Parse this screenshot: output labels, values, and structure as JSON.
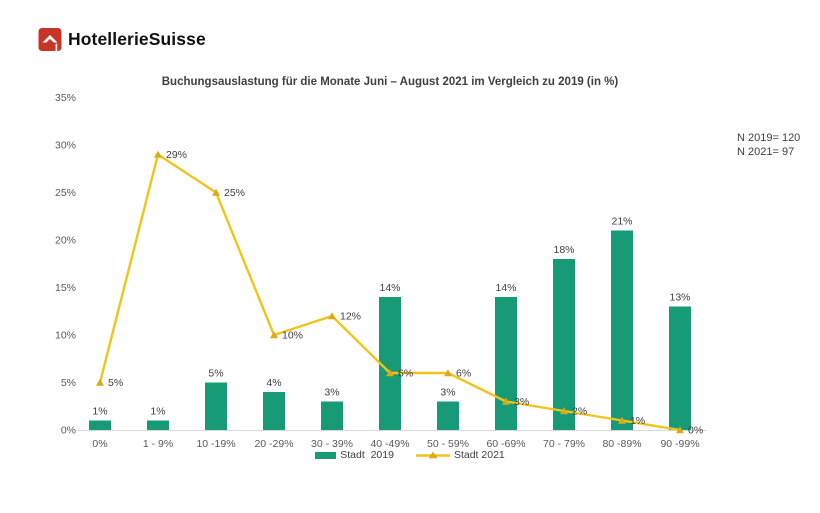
{
  "logo": {
    "brand": "HotellerieSuisse",
    "icon_color": "#c63527"
  },
  "annotations": {
    "n2019": "N 2019= 120",
    "n2021": "N 2021= 97"
  },
  "chart_data": {
    "type": "bar",
    "title": "Buchungsauslastung für die Monate Juni – August 2021 im Vergleich zu 2019 (in %)",
    "categories": [
      "0%",
      "1 - 9%",
      "10 -19%",
      "20 -29%",
      "30 - 39%",
      "40 -49%",
      "50 - 59%",
      "60 -69%",
      "70 - 79%",
      "80 -89%",
      "90 -99%"
    ],
    "series": [
      {
        "name": "Stadt  2019",
        "type": "bar",
        "color": "#169b76",
        "values": [
          1,
          1,
          5,
          4,
          3,
          14,
          3,
          14,
          18,
          21,
          13
        ]
      },
      {
        "name": "Stadt 2021",
        "type": "line",
        "color": "#f2c41a",
        "marker_color": "#dfa815",
        "values": [
          5,
          29,
          25,
          10,
          12,
          6,
          6,
          3,
          2,
          1,
          0
        ]
      }
    ],
    "data_label_suffix": "%",
    "y_ticks": [
      "0%",
      "5%",
      "10%",
      "15%",
      "20%",
      "25%",
      "30%",
      "35%"
    ],
    "ylim": [
      0,
      35
    ],
    "grid": false,
    "legend_position": "bottom",
    "axis_color": "#d9d9d9",
    "tick_label_color": "#595959",
    "data_label_color": "#3f3f3f"
  }
}
